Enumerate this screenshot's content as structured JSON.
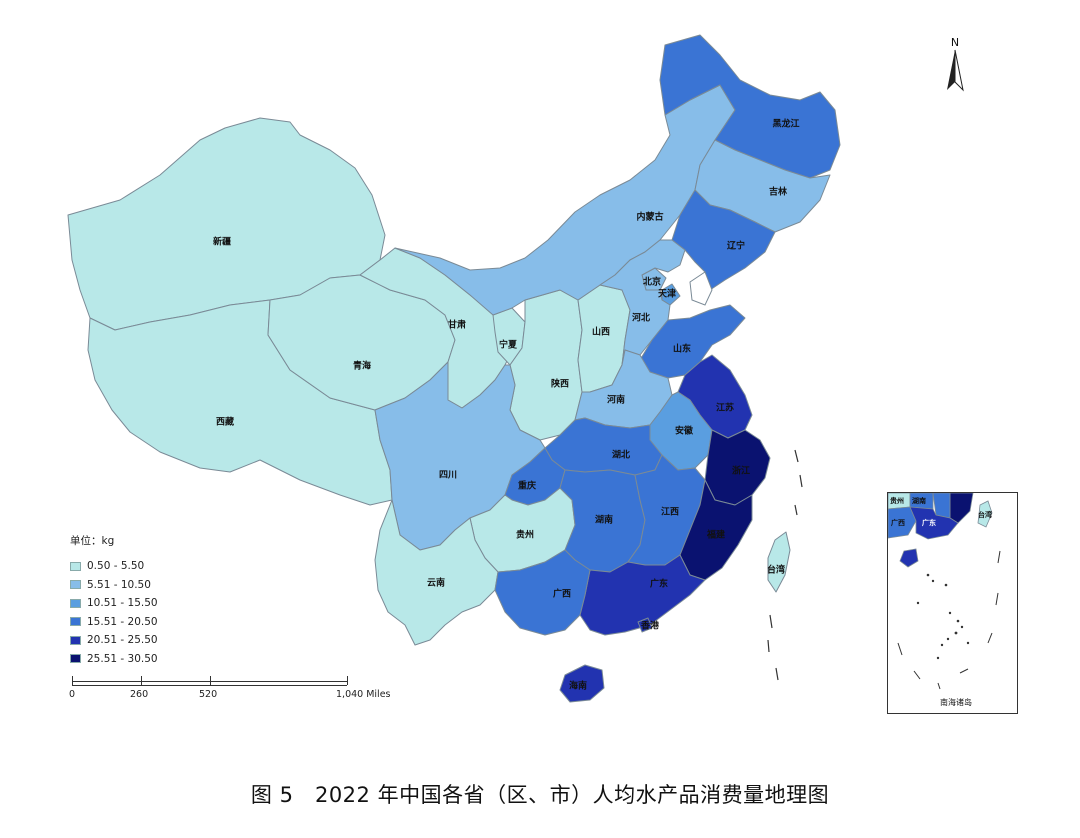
{
  "caption": "图 5　2022 年中国各省（区、市）人均水产品消费量地理图",
  "north_label": "N",
  "legend": {
    "unit": "单位：kg",
    "classes": [
      {
        "label": "0.50 - 5.50",
        "color": "#b8e8e8"
      },
      {
        "label": "5.51 - 10.50",
        "color": "#87bde9"
      },
      {
        "label": "10.51 - 15.50",
        "color": "#5a9ee0"
      },
      {
        "label": "15.51 - 20.50",
        "color": "#3a74d4"
      },
      {
        "label": "20.51 - 25.50",
        "color": "#2233b0"
      },
      {
        "label": "25.51 - 30.50",
        "color": "#0a1270"
      }
    ]
  },
  "scale": {
    "labels": [
      "0",
      "260",
      "520",
      "1,040 Miles"
    ]
  },
  "provinces": [
    {
      "name": "新疆",
      "class": 0
    },
    {
      "name": "西藏",
      "class": 0
    },
    {
      "name": "青海",
      "class": 0
    },
    {
      "name": "甘肃",
      "class": 0
    },
    {
      "name": "宁夏",
      "class": 0
    },
    {
      "name": "陕西",
      "class": 0
    },
    {
      "name": "山西",
      "class": 0
    },
    {
      "name": "内蒙古",
      "class": 1
    },
    {
      "name": "黑龙江",
      "class": 3
    },
    {
      "name": "吉林",
      "class": 1
    },
    {
      "name": "辽宁",
      "class": 3
    },
    {
      "name": "北京",
      "class": 1
    },
    {
      "name": "天津",
      "class": 2
    },
    {
      "name": "河北",
      "class": 1
    },
    {
      "name": "山东",
      "class": 3
    },
    {
      "name": "河南",
      "class": 1
    },
    {
      "name": "江苏",
      "class": 4
    },
    {
      "name": "安徽",
      "class": 2
    },
    {
      "name": "湖北",
      "class": 3
    },
    {
      "name": "四川",
      "class": 1
    },
    {
      "name": "重庆",
      "class": 3
    },
    {
      "name": "贵州",
      "class": 0
    },
    {
      "name": "云南",
      "class": 0
    },
    {
      "name": "湖南",
      "class": 3
    },
    {
      "name": "江西",
      "class": 3
    },
    {
      "name": "浙江",
      "class": 5
    },
    {
      "name": "福建",
      "class": 5
    },
    {
      "name": "广东",
      "class": 4
    },
    {
      "name": "广西",
      "class": 3
    },
    {
      "name": "海南",
      "class": 4
    },
    {
      "name": "台湾",
      "class": 0
    },
    {
      "name": "香港",
      "class": 4
    }
  ],
  "inset": {
    "label": "南海诸岛",
    "labels": [
      "贵州",
      "湖南",
      "广西",
      "广东",
      "台湾"
    ]
  }
}
